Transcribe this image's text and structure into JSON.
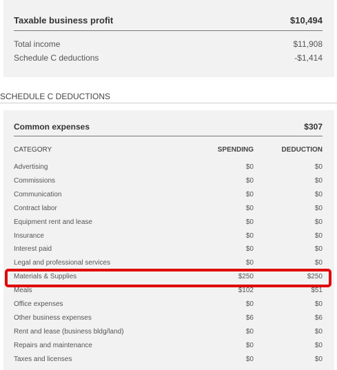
{
  "summary": {
    "title": "Taxable business profit",
    "total": "$10,494",
    "rows": [
      [
        "Total income",
        "$11,908"
      ],
      [
        "Schedule C deductions",
        "-$1,414"
      ]
    ]
  },
  "section_title": "SCHEDULE C DEDUCTIONS",
  "expenses": {
    "title": "Common expenses",
    "total": "$307",
    "headers": [
      "CATEGORY",
      "SPENDING",
      "DEDUCTION"
    ],
    "rows": [
      [
        "Advertising",
        "$0",
        "$0"
      ],
      [
        "Commissions",
        "$0",
        "$0"
      ],
      [
        "Communication",
        "$0",
        "$0"
      ],
      [
        "Contract labor",
        "$0",
        "$0"
      ],
      [
        "Equipment rent and lease",
        "$0",
        "$0"
      ],
      [
        "Insurance",
        "$0",
        "$0"
      ],
      [
        "Interest paid",
        "$0",
        "$0"
      ],
      [
        "Legal and professional services",
        "$0",
        "$0"
      ],
      [
        "Materials & Supplies",
        "$250",
        "$250"
      ],
      [
        "Meals",
        "$102",
        "$51"
      ],
      [
        "Office expenses",
        "$0",
        "$0"
      ],
      [
        "Other business expenses",
        "$6",
        "$6"
      ],
      [
        "Rent and lease (business bldg/land)",
        "$0",
        "$0"
      ],
      [
        "Repairs and maintenance",
        "$0",
        "$0"
      ],
      [
        "Taxes and licenses",
        "$0",
        "$0"
      ]
    ]
  }
}
